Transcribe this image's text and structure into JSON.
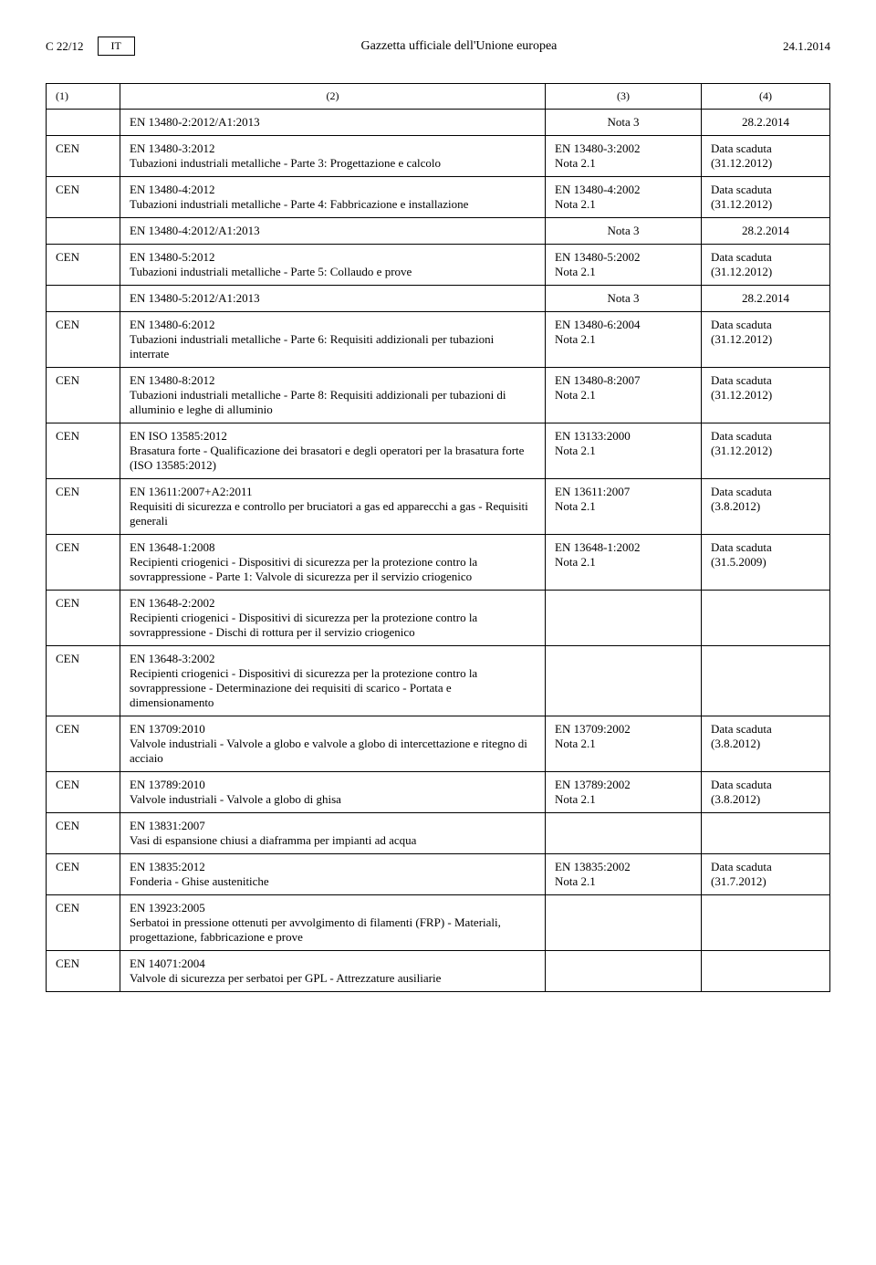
{
  "header": {
    "page_id": "C 22/12",
    "lang": "IT",
    "title": "Gazzetta ufficiale dell'Unione europea",
    "date": "24.1.2014"
  },
  "table": {
    "col_headers": [
      "(1)",
      "(2)",
      "(3)",
      "(4)"
    ],
    "rows": [
      {
        "c1": "",
        "c2_title": "EN 13480-2:2012/A1:2013",
        "c2_desc": "",
        "c3_top": "Nota 3",
        "c3_bot": "",
        "c4_top": "28.2.2014",
        "c4_bot": "",
        "c3_center": true,
        "c4_center": true
      },
      {
        "c1": "CEN",
        "c2_title": "EN 13480-3:2012",
        "c2_desc": "Tubazioni industriali metalliche - Parte 3: Progettazione e calcolo",
        "c3_top": "EN 13480-3:2002",
        "c3_bot": "Nota 2.1",
        "c4_top": "Data scaduta",
        "c4_bot": "(31.12.2012)"
      },
      {
        "c1": "CEN",
        "c2_title": "EN 13480-4:2012",
        "c2_desc": "Tubazioni industriali metalliche - Parte 4: Fabbricazione e installazione",
        "c3_top": "EN 13480-4:2002",
        "c3_bot": "Nota 2.1",
        "c4_top": "Data scaduta",
        "c4_bot": "(31.12.2012)"
      },
      {
        "c1": "",
        "c2_title": "EN 13480-4:2012/A1:2013",
        "c2_desc": "",
        "c3_top": "Nota 3",
        "c3_bot": "",
        "c4_top": "28.2.2014",
        "c4_bot": "",
        "c3_center": true,
        "c4_center": true
      },
      {
        "c1": "CEN",
        "c2_title": "EN 13480-5:2012",
        "c2_desc": "Tubazioni industriali metalliche - Parte 5: Collaudo e prove",
        "c3_top": "EN 13480-5:2002",
        "c3_bot": "Nota 2.1",
        "c4_top": "Data scaduta",
        "c4_bot": "(31.12.2012)"
      },
      {
        "c1": "",
        "c2_title": "EN 13480-5:2012/A1:2013",
        "c2_desc": "",
        "c3_top": "Nota 3",
        "c3_bot": "",
        "c4_top": "28.2.2014",
        "c4_bot": "",
        "c3_center": true,
        "c4_center": true
      },
      {
        "c1": "CEN",
        "c2_title": "EN 13480-6:2012",
        "c2_desc": "Tubazioni industriali metalliche - Parte 6: Requisiti addizionali per tubazioni interrate",
        "c3_top": "EN 13480-6:2004",
        "c3_bot": "Nota 2.1",
        "c4_top": "Data scaduta",
        "c4_bot": "(31.12.2012)"
      },
      {
        "c1": "CEN",
        "c2_title": "EN 13480-8:2012",
        "c2_desc": "Tubazioni industriali metalliche - Parte 8: Requisiti addizionali per tubazioni di alluminio e leghe di alluminio",
        "c3_top": "EN 13480-8:2007",
        "c3_bot": "Nota 2.1",
        "c4_top": "Data scaduta",
        "c4_bot": "(31.12.2012)"
      },
      {
        "c1": "CEN",
        "c2_title": "EN ISO 13585:2012",
        "c2_desc": "Brasatura forte - Qualificazione dei brasatori e degli operatori per la brasatura forte (ISO 13585:2012)",
        "c3_top": "EN 13133:2000",
        "c3_bot": "Nota 2.1",
        "c4_top": "Data scaduta",
        "c4_bot": "(31.12.2012)"
      },
      {
        "c1": "CEN",
        "c2_title": "EN 13611:2007+A2:2011",
        "c2_desc": "Requisiti di sicurezza e controllo per bruciatori a gas ed apparecchi a gas - Requisiti generali",
        "c3_top": "EN 13611:2007",
        "c3_bot": "Nota 2.1",
        "c4_top": "Data scaduta",
        "c4_bot": "(3.8.2012)"
      },
      {
        "c1": "CEN",
        "c2_title": "EN 13648-1:2008",
        "c2_desc": "Recipienti criogenici - Dispositivi di sicurezza per la protezione contro la sovrappressione - Parte 1: Valvole di sicurezza per il servizio criogenico",
        "c3_top": "EN 13648-1:2002",
        "c3_bot": "Nota 2.1",
        "c4_top": "Data scaduta",
        "c4_bot": "(31.5.2009)"
      },
      {
        "c1": "CEN",
        "c2_title": "EN 13648-2:2002",
        "c2_desc": "Recipienti criogenici - Dispositivi di sicurezza per la protezione contro la sovrappressione - Dischi di rottura per il servizio criogenico",
        "c3_top": "",
        "c3_bot": "",
        "c4_top": "",
        "c4_bot": ""
      },
      {
        "c1": "CEN",
        "c2_title": "EN 13648-3:2002",
        "c2_desc": "Recipienti criogenici - Dispositivi di sicurezza per la protezione contro la sovrappressione - Determinazione dei requisiti di scarico - Portata e dimensionamento",
        "c3_top": "",
        "c3_bot": "",
        "c4_top": "",
        "c4_bot": ""
      },
      {
        "c1": "CEN",
        "c2_title": "EN 13709:2010",
        "c2_desc": "Valvole industriali - Valvole a globo e valvole a globo di intercettazione e ritegno di acciaio",
        "c3_top": "EN 13709:2002",
        "c3_bot": "Nota 2.1",
        "c4_top": "Data scaduta",
        "c4_bot": "(3.8.2012)"
      },
      {
        "c1": "CEN",
        "c2_title": "EN 13789:2010",
        "c2_desc": "Valvole industriali - Valvole a globo di ghisa",
        "c3_top": "EN 13789:2002",
        "c3_bot": "Nota 2.1",
        "c4_top": "Data scaduta",
        "c4_bot": "(3.8.2012)"
      },
      {
        "c1": "CEN",
        "c2_title": "EN 13831:2007",
        "c2_desc": "Vasi di espansione chiusi a diaframma per impianti ad acqua",
        "c3_top": "",
        "c3_bot": "",
        "c4_top": "",
        "c4_bot": ""
      },
      {
        "c1": "CEN",
        "c2_title": "EN 13835:2012",
        "c2_desc": "Fonderia - Ghise austenitiche",
        "c3_top": "EN 13835:2002",
        "c3_bot": "Nota 2.1",
        "c4_top": "Data scaduta",
        "c4_bot": "(31.7.2012)"
      },
      {
        "c1": "CEN",
        "c2_title": "EN 13923:2005",
        "c2_desc": "Serbatoi in pressione ottenuti per avvolgimento di filamenti (FRP) - Materiali, progettazione, fabbricazione e prove",
        "c3_top": "",
        "c3_bot": "",
        "c4_top": "",
        "c4_bot": ""
      },
      {
        "c1": "CEN",
        "c2_title": "EN 14071:2004",
        "c2_desc": "Valvole di sicurezza per serbatoi per GPL - Attrezzature ausiliarie",
        "c3_top": "",
        "c3_bot": "",
        "c4_top": "",
        "c4_bot": ""
      }
    ]
  }
}
